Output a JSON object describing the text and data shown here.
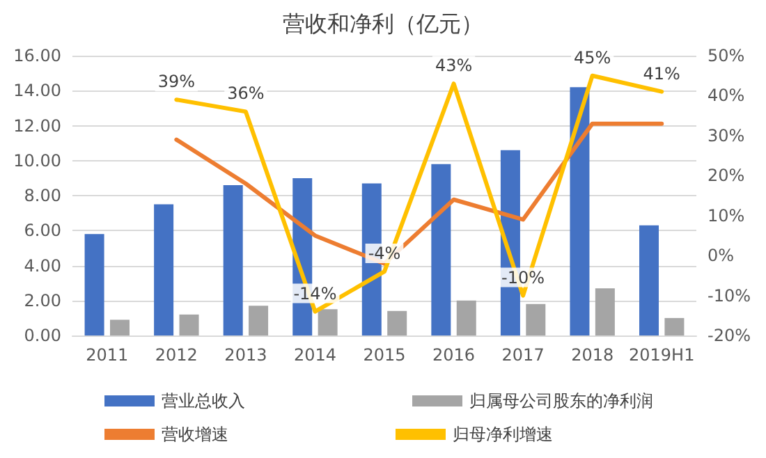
{
  "chart_data": {
    "type": "bar",
    "title": "营收和净利（亿元）",
    "categories": [
      "2011",
      "2012",
      "2013",
      "2014",
      "2015",
      "2016",
      "2017",
      "2018",
      "2019H1"
    ],
    "series": [
      {
        "name": "营业总收入",
        "color": "#4472c4",
        "values": [
          5.8,
          7.5,
          8.6,
          9.0,
          8.7,
          9.8,
          10.6,
          14.2,
          6.3
        ]
      },
      {
        "name": "归属母公司股东的净利润",
        "color": "#a5a5a5",
        "values": [
          0.9,
          1.2,
          1.7,
          1.5,
          1.4,
          2.0,
          1.8,
          2.7,
          1.0
        ]
      },
      {
        "name": "营收增速",
        "type": "line",
        "axis": "y2",
        "color": "#ed7d31",
        "values": [
          null,
          29,
          18,
          5,
          -2,
          14,
          9,
          33,
          33
        ]
      },
      {
        "name": "归母净利增速",
        "type": "line",
        "axis": "y2",
        "color": "#ffc000",
        "values": [
          null,
          39,
          36,
          -14,
          -4,
          43,
          -10,
          45,
          41
        ],
        "value_labels": [
          null,
          "39%",
          "36%",
          "-14%",
          "-4%",
          "43%",
          "-10%",
          "45%",
          "41%"
        ]
      }
    ],
    "ylim": [
      0,
      16
    ],
    "yticks": [
      {
        "value": 0,
        "label": "0.00"
      },
      {
        "value": 2,
        "label": "2.00"
      },
      {
        "value": 4,
        "label": "4.00"
      },
      {
        "value": 6,
        "label": "6.00"
      },
      {
        "value": 8,
        "label": "8.00"
      },
      {
        "value": 10,
        "label": "10.00"
      },
      {
        "value": 12,
        "label": "12.00"
      },
      {
        "value": 14,
        "label": "14.00"
      },
      {
        "value": 16,
        "label": "16.00"
      }
    ],
    "y2lim": [
      -20,
      50
    ],
    "y2ticks": [
      {
        "value": -20,
        "label": "-20%"
      },
      {
        "value": -10,
        "label": "-10%"
      },
      {
        "value": 0,
        "label": "0%"
      },
      {
        "value": 10,
        "label": "10%"
      },
      {
        "value": 20,
        "label": "20%"
      },
      {
        "value": 30,
        "label": "30%"
      },
      {
        "value": 40,
        "label": "40%"
      },
      {
        "value": 50,
        "label": "50%"
      }
    ],
    "grid": "y",
    "legend": "bottom",
    "marker": "none",
    "line_style": "solid"
  }
}
